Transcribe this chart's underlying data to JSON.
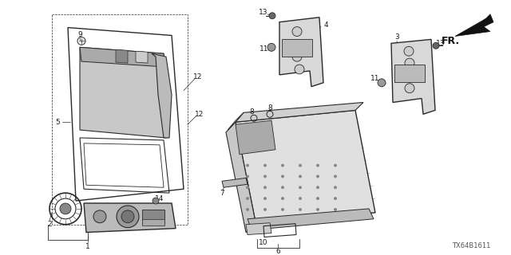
{
  "bg_color": "#ffffff",
  "diagram_id": "TX64B1611",
  "line_color": "#2a2a2a",
  "label_color": "#1a1a1a",
  "font_size": 6.5,
  "font_size_small": 5.5
}
